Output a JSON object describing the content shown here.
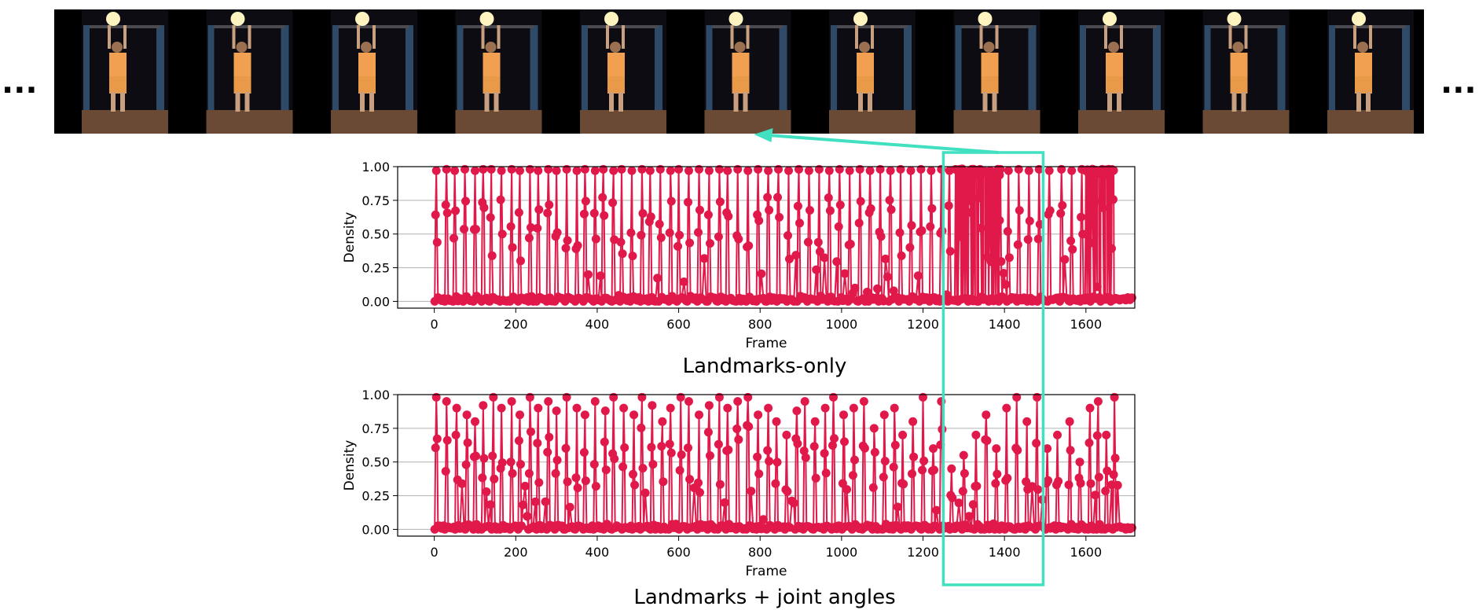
{
  "ellipsis_left": "...",
  "ellipsis_right": "...",
  "filmstrip": {
    "frame_count": 11,
    "description_colors": {
      "background": "#000000",
      "shirt": "#f0a050",
      "floor": "#6a4a35",
      "rack": "#2e5a7a"
    }
  },
  "highlight": {
    "color": "#40e0c0",
    "frame_start": 1250,
    "frame_end": 1495,
    "target_frame_index": 5
  },
  "series_color": "#e0194a",
  "chart_data": [
    {
      "type": "line",
      "title": "Landmarks-only",
      "xlabel": "Frame",
      "ylabel": "Density",
      "xlim": [
        -90,
        1720
      ],
      "ylim": [
        -0.05,
        1.0
      ],
      "xticks": [
        0,
        200,
        400,
        600,
        800,
        1000,
        1200,
        1400,
        1600
      ],
      "yticks": [
        "0.00",
        "0.25",
        "0.50",
        "0.75",
        "1.00"
      ],
      "grid_y": true,
      "spikes": [
        [
          5,
          0.97
        ],
        [
          30,
          0.98
        ],
        [
          50,
          0.97
        ],
        [
          75,
          0.98
        ],
        [
          100,
          0.97
        ],
        [
          120,
          0.98
        ],
        [
          140,
          0.98
        ],
        [
          165,
          0.97
        ],
        [
          190,
          0.98
        ],
        [
          210,
          0.97
        ],
        [
          235,
          0.98
        ],
        [
          255,
          0.97
        ],
        [
          280,
          0.98
        ],
        [
          300,
          0.97
        ],
        [
          325,
          0.98
        ],
        [
          350,
          0.97
        ],
        [
          370,
          0.98
        ],
        [
          395,
          0.97
        ],
        [
          415,
          0.98
        ],
        [
          440,
          0.97
        ],
        [
          460,
          0.98
        ],
        [
          485,
          0.97
        ],
        [
          510,
          0.98
        ],
        [
          530,
          0.97
        ],
        [
          555,
          0.98
        ],
        [
          580,
          0.97
        ],
        [
          600,
          0.98
        ],
        [
          625,
          0.97
        ],
        [
          650,
          0.98
        ],
        [
          675,
          0.97
        ],
        [
          700,
          0.98
        ],
        [
          720,
          0.97
        ],
        [
          745,
          0.98
        ],
        [
          770,
          0.97
        ],
        [
          795,
          0.98
        ],
        [
          820,
          0.97
        ],
        [
          845,
          0.98
        ],
        [
          870,
          0.97
        ],
        [
          895,
          0.98
        ],
        [
          920,
          0.97
        ],
        [
          945,
          0.98
        ],
        [
          970,
          0.97
        ],
        [
          995,
          0.98
        ],
        [
          1020,
          0.97
        ],
        [
          1045,
          0.98
        ],
        [
          1070,
          0.97
        ],
        [
          1095,
          0.98
        ],
        [
          1120,
          0.97
        ],
        [
          1145,
          0.98
        ],
        [
          1170,
          0.97
        ],
        [
          1195,
          0.98
        ],
        [
          1220,
          0.97
        ],
        [
          1245,
          0.98
        ],
        [
          1265,
          0.97
        ],
        [
          1290,
          0.98
        ],
        [
          1315,
          0.97
        ],
        [
          1340,
          0.98
        ],
        [
          1365,
          0.97
        ],
        [
          1390,
          0.98
        ],
        [
          1410,
          0.97
        ],
        [
          1435,
          0.98
        ],
        [
          1460,
          0.97
        ],
        [
          1485,
          0.98
        ],
        [
          1510,
          0.97
        ],
        [
          1540,
          0.98
        ],
        [
          1565,
          0.97
        ],
        [
          1590,
          0.98
        ],
        [
          1615,
          0.97
        ],
        [
          1640,
          0.98
        ],
        [
          1665,
          0.97
        ]
      ],
      "plateaus": [
        [
          1280,
          1390,
          0.96
        ],
        [
          1600,
          1670,
          0.96
        ]
      ]
    },
    {
      "type": "line",
      "title": "Landmarks + joint angles",
      "xlabel": "Frame",
      "ylabel": "Density",
      "xlim": [
        -90,
        1720
      ],
      "ylim": [
        -0.05,
        1.0
      ],
      "xticks": [
        0,
        200,
        400,
        600,
        800,
        1000,
        1200,
        1400,
        1600
      ],
      "yticks": [
        "0.00",
        "0.25",
        "0.50",
        "0.75",
        "1.00"
      ],
      "grid_y": true,
      "spikes": [
        [
          5,
          0.98
        ],
        [
          30,
          0.95
        ],
        [
          55,
          0.9
        ],
        [
          80,
          0.85
        ],
        [
          100,
          0.8
        ],
        [
          120,
          0.92
        ],
        [
          145,
          0.98
        ],
        [
          165,
          0.9
        ],
        [
          190,
          0.95
        ],
        [
          210,
          0.85
        ],
        [
          235,
          0.98
        ],
        [
          255,
          0.9
        ],
        [
          280,
          0.95
        ],
        [
          300,
          0.88
        ],
        [
          325,
          0.98
        ],
        [
          350,
          0.9
        ],
        [
          370,
          0.85
        ],
        [
          395,
          0.95
        ],
        [
          420,
          0.88
        ],
        [
          440,
          0.98
        ],
        [
          465,
          0.9
        ],
        [
          490,
          0.85
        ],
        [
          510,
          0.98
        ],
        [
          535,
          0.92
        ],
        [
          560,
          0.8
        ],
        [
          580,
          0.9
        ],
        [
          605,
          0.98
        ],
        [
          625,
          0.95
        ],
        [
          650,
          0.85
        ],
        [
          675,
          0.92
        ],
        [
          700,
          0.98
        ],
        [
          720,
          0.9
        ],
        [
          745,
          0.95
        ],
        [
          770,
          0.98
        ],
        [
          795,
          0.85
        ],
        [
          820,
          0.9
        ],
        [
          840,
          0.8
        ],
        [
          865,
          0.7
        ],
        [
          890,
          0.88
        ],
        [
          910,
          0.95
        ],
        [
          935,
          0.8
        ],
        [
          960,
          0.9
        ],
        [
          980,
          0.98
        ],
        [
          1005,
          0.85
        ],
        [
          1030,
          0.9
        ],
        [
          1055,
          0.95
        ],
        [
          1080,
          0.75
        ],
        [
          1105,
          0.85
        ],
        [
          1130,
          0.9
        ],
        [
          1150,
          0.7
        ],
        [
          1175,
          0.8
        ],
        [
          1200,
          0.98
        ],
        [
          1225,
          0.6
        ],
        [
          1245,
          0.95
        ],
        [
          1270,
          0.45
        ],
        [
          1300,
          0.55
        ],
        [
          1330,
          0.7
        ],
        [
          1355,
          0.85
        ],
        [
          1380,
          0.6
        ],
        [
          1405,
          0.9
        ],
        [
          1430,
          0.98
        ],
        [
          1455,
          0.8
        ],
        [
          1480,
          0.98
        ],
        [
          1505,
          0.6
        ],
        [
          1530,
          0.7
        ],
        [
          1560,
          0.8
        ],
        [
          1585,
          0.5
        ],
        [
          1610,
          0.9
        ],
        [
          1630,
          0.95
        ],
        [
          1650,
          0.7
        ],
        [
          1670,
          0.98
        ]
      ],
      "plateaus": []
    }
  ]
}
